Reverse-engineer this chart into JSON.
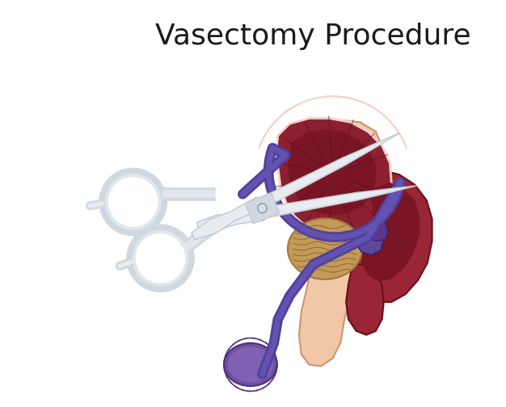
{
  "title": "Vasectomy Procedure",
  "title_fontsize": 26,
  "title_color": "#1a1a1a",
  "background_color": "#ffffff",
  "figsize": [
    6.26,
    5.04
  ],
  "dpi": 100,
  "colors": {
    "skin_peach": "#e8b898",
    "skin_light": "#f0c8a8",
    "skin_outline": "#d09070",
    "bladder_red": "#8b2030",
    "bladder_inner": "#6a1020",
    "bladder_edge": "#f0c0c0",
    "rectum_red": "#9a2535",
    "rectum_dark": "#7a1525",
    "prostate_tan": "#c49a58",
    "prostate_dark": "#a07840",
    "vas_purple": "#5040a0",
    "vas_light": "#8070c0",
    "testis_purple": "#7050a0",
    "testis_dark": "#503080",
    "seminal_purple": "#604898",
    "scissors_white": "#e8ecf0",
    "scissors_gray": "#c0c8d0",
    "scissors_dark": "#9098a8",
    "scissors_mid": "#d0d8e0"
  }
}
